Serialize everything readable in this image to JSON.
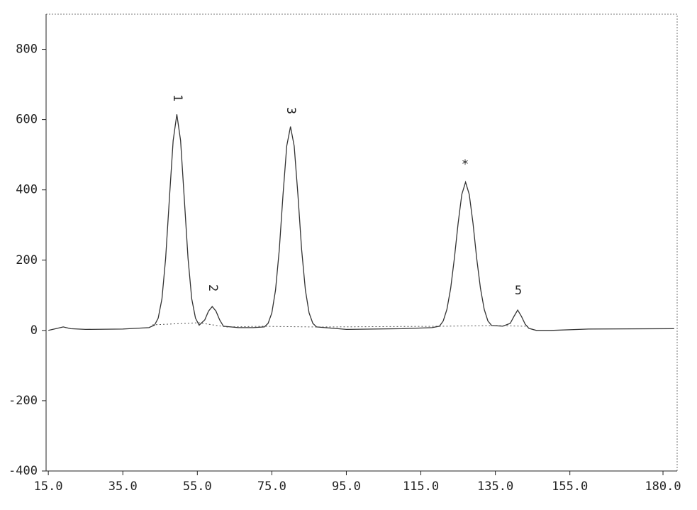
{
  "chart_data": {
    "type": "line",
    "x": [
      15,
      17,
      19,
      21,
      25,
      35,
      42,
      43.5,
      44.5,
      45.5,
      46.5,
      47.5,
      48.5,
      49.5,
      50.5,
      51.5,
      52.5,
      53.5,
      54.5,
      55.5,
      57,
      58,
      59,
      60,
      61,
      62,
      66,
      70,
      73,
      74,
      75,
      76,
      77,
      78,
      79,
      80,
      81,
      82,
      83,
      84,
      85,
      86,
      87,
      95,
      110,
      118,
      120,
      121,
      122,
      123,
      124,
      125,
      126,
      127,
      128,
      129,
      130,
      131,
      132,
      133,
      134,
      137,
      139,
      140,
      141,
      142,
      143,
      144,
      146,
      150,
      160,
      183
    ],
    "values": [
      0,
      5,
      10,
      5,
      3,
      4,
      8,
      15,
      35,
      90,
      205,
      375,
      540,
      615,
      540,
      375,
      205,
      90,
      35,
      15,
      30,
      55,
      68,
      55,
      30,
      12,
      8,
      8,
      10,
      20,
      50,
      115,
      230,
      385,
      525,
      580,
      525,
      385,
      230,
      115,
      50,
      20,
      10,
      3,
      5,
      8,
      12,
      27,
      60,
      120,
      205,
      305,
      387,
      422,
      387,
      305,
      205,
      120,
      60,
      27,
      14,
      12,
      20,
      40,
      58,
      40,
      18,
      6,
      0,
      0,
      4,
      5
    ],
    "color": "#333333",
    "annotations": [
      "1",
      "2",
      "3",
      "*",
      "5"
    ],
    "xlim": [
      14.4,
      183.8
    ],
    "ylim": [
      -400,
      900
    ],
    "xticks": [
      {
        "value": 15,
        "label": "15.0"
      },
      {
        "value": 35,
        "label": "35.0"
      },
      {
        "value": 55,
        "label": "55.0"
      },
      {
        "value": 75,
        "label": "75.0"
      },
      {
        "value": 95,
        "label": "95.0"
      },
      {
        "value": 115,
        "label": "115.0"
      },
      {
        "value": 135,
        "label": "135.0"
      },
      {
        "value": 155,
        "label": "155.0"
      },
      {
        "value": 180,
        "label": "180.0"
      }
    ],
    "yticks": [
      800,
      600,
      400,
      200,
      0,
      -200,
      -400
    ],
    "grid": false
  }
}
